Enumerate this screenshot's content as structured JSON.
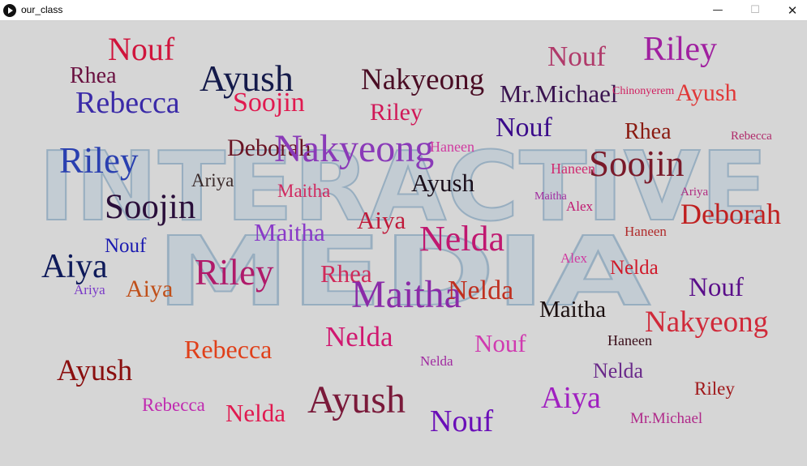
{
  "window": {
    "title": "our_class",
    "minimize": "—",
    "maximize": "☐",
    "close": "✕"
  },
  "background": {
    "line1": "INTERACTIVE",
    "line2": "MEDIA"
  },
  "words": [
    {
      "text": "Nouf",
      "color": "#d0143c"
    },
    {
      "text": "Rhea",
      "color": "#6a1040"
    },
    {
      "text": "Ayush",
      "color": "#141a4a"
    },
    {
      "text": "Nakyeong",
      "color": "#4a0d24"
    },
    {
      "text": "Nouf",
      "color": "#b03a6a"
    },
    {
      "text": "Riley",
      "color": "#a020a0"
    },
    {
      "text": "Rebecca",
      "color": "#3a2aa8"
    },
    {
      "text": "Soojin",
      "color": "#e01a50"
    },
    {
      "text": "Mr.Michael",
      "color": "#3a1450"
    },
    {
      "text": "Chinonyerem",
      "color": "#d02060"
    },
    {
      "text": "Ayush",
      "color": "#e03838"
    },
    {
      "text": "Riley",
      "color": "#d01858"
    },
    {
      "text": "Nouf",
      "color": "#3a0a8a"
    },
    {
      "text": "Rhea",
      "color": "#8a1a10"
    },
    {
      "text": "Rebecca",
      "color": "#b02a6a"
    },
    {
      "text": "Riley",
      "color": "#2a40b0"
    },
    {
      "text": "Deborah",
      "color": "#6a1424"
    },
    {
      "text": "Nakyeong",
      "color": "#8a3ab8"
    },
    {
      "text": "Haneen",
      "color": "#d03aa0"
    },
    {
      "text": "Haneen",
      "color": "#d02a70"
    },
    {
      "text": "Soojin",
      "color": "#7a1a2a"
    },
    {
      "text": "Ariya",
      "color": "#3a2a2a"
    },
    {
      "text": "Maitha",
      "color": "#d02a60"
    },
    {
      "text": "Ayush",
      "color": "#1a0e1a"
    },
    {
      "text": "Maitha",
      "color": "#a02aa0"
    },
    {
      "text": "Alex",
      "color": "#c01870"
    },
    {
      "text": "Ariya",
      "color": "#b02a80"
    },
    {
      "text": "Soojin",
      "color": "#2a0e3a"
    },
    {
      "text": "Deborah",
      "color": "#c02020"
    },
    {
      "text": "Aiya",
      "color": "#c01a3a"
    },
    {
      "text": "Maitha",
      "color": "#8a3ac8"
    },
    {
      "text": "Nelda",
      "color": "#c01870"
    },
    {
      "text": "Haneen",
      "color": "#b02a2a"
    },
    {
      "text": "Nouf",
      "color": "#1a1ab0"
    },
    {
      "text": "Aiya",
      "color": "#0e1a5a"
    },
    {
      "text": "Riley",
      "color": "#b01a6a"
    },
    {
      "text": "Alex",
      "color": "#d03aa0"
    },
    {
      "text": "Nelda",
      "color": "#d01a2a"
    },
    {
      "text": "Rhea",
      "color": "#d02a5a"
    },
    {
      "text": "Nouf",
      "color": "#5a0e8a"
    },
    {
      "text": "Ariya",
      "color": "#7a3ac8"
    },
    {
      "text": "Aiya",
      "color": "#c0501a"
    },
    {
      "text": "Maitha",
      "color": "#8a2aa8"
    },
    {
      "text": "Nelda",
      "color": "#c03020"
    },
    {
      "text": "Maitha",
      "color": "#1a0e0e"
    },
    {
      "text": "Nakyeong",
      "color": "#d02a3a"
    },
    {
      "text": "Nelda",
      "color": "#d01870"
    },
    {
      "text": "Nouf",
      "color": "#d03ab0"
    },
    {
      "text": "Haneen",
      "color": "#3a0e1a"
    },
    {
      "text": "Rebecca",
      "color": "#e0401a"
    },
    {
      "text": "Nelda",
      "color": "#a02aa0"
    },
    {
      "text": "Ayush",
      "color": "#8a0e0e"
    },
    {
      "text": "Nelda",
      "color": "#6a2a8a"
    },
    {
      "text": "Riley",
      "color": "#a0181a"
    },
    {
      "text": "Rebecca",
      "color": "#c02ab0"
    },
    {
      "text": "Nelda",
      "color": "#e01a50"
    },
    {
      "text": "Ayush",
      "color": "#7a1a3a"
    },
    {
      "text": "Aiya",
      "color": "#a020c0"
    },
    {
      "text": "Nouf",
      "color": "#6a0eb8"
    },
    {
      "text": "Mr.Michael",
      "color": "#b02a8a"
    }
  ]
}
